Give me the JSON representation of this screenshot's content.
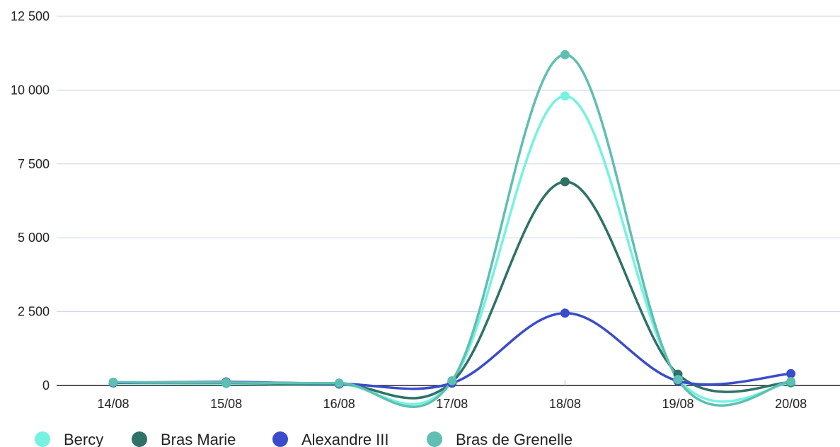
{
  "chart_data": {
    "type": "line",
    "title": "",
    "xlabel": "",
    "ylabel": "",
    "categories": [
      "14/08",
      "15/08",
      "16/08",
      "17/08",
      "18/08",
      "19/08",
      "20/08"
    ],
    "ylim": [
      0,
      12500
    ],
    "yticks": [
      0,
      2500,
      5000,
      7500,
      10000,
      12500
    ],
    "ytick_labels": [
      "0",
      "2 500",
      "5 000",
      "7 500",
      "10 000",
      "12 500"
    ],
    "grid": true,
    "smooth": true,
    "legend_position": "bottom-left",
    "series": [
      {
        "name": "Bercy",
        "color": "#76f2e0",
        "values": [
          80,
          60,
          40,
          150,
          9800,
          250,
          80
        ]
      },
      {
        "name": "Bras Marie",
        "color": "#2f7267",
        "values": [
          100,
          90,
          50,
          120,
          6900,
          380,
          100
        ]
      },
      {
        "name": "Alexandre III",
        "color": "#3a4ccb",
        "values": [
          90,
          120,
          60,
          80,
          2450,
          150,
          400
        ]
      },
      {
        "name": "Bras de Grenelle",
        "color": "#5fbfb2",
        "values": [
          110,
          100,
          80,
          160,
          11200,
          200,
          130
        ]
      }
    ]
  }
}
